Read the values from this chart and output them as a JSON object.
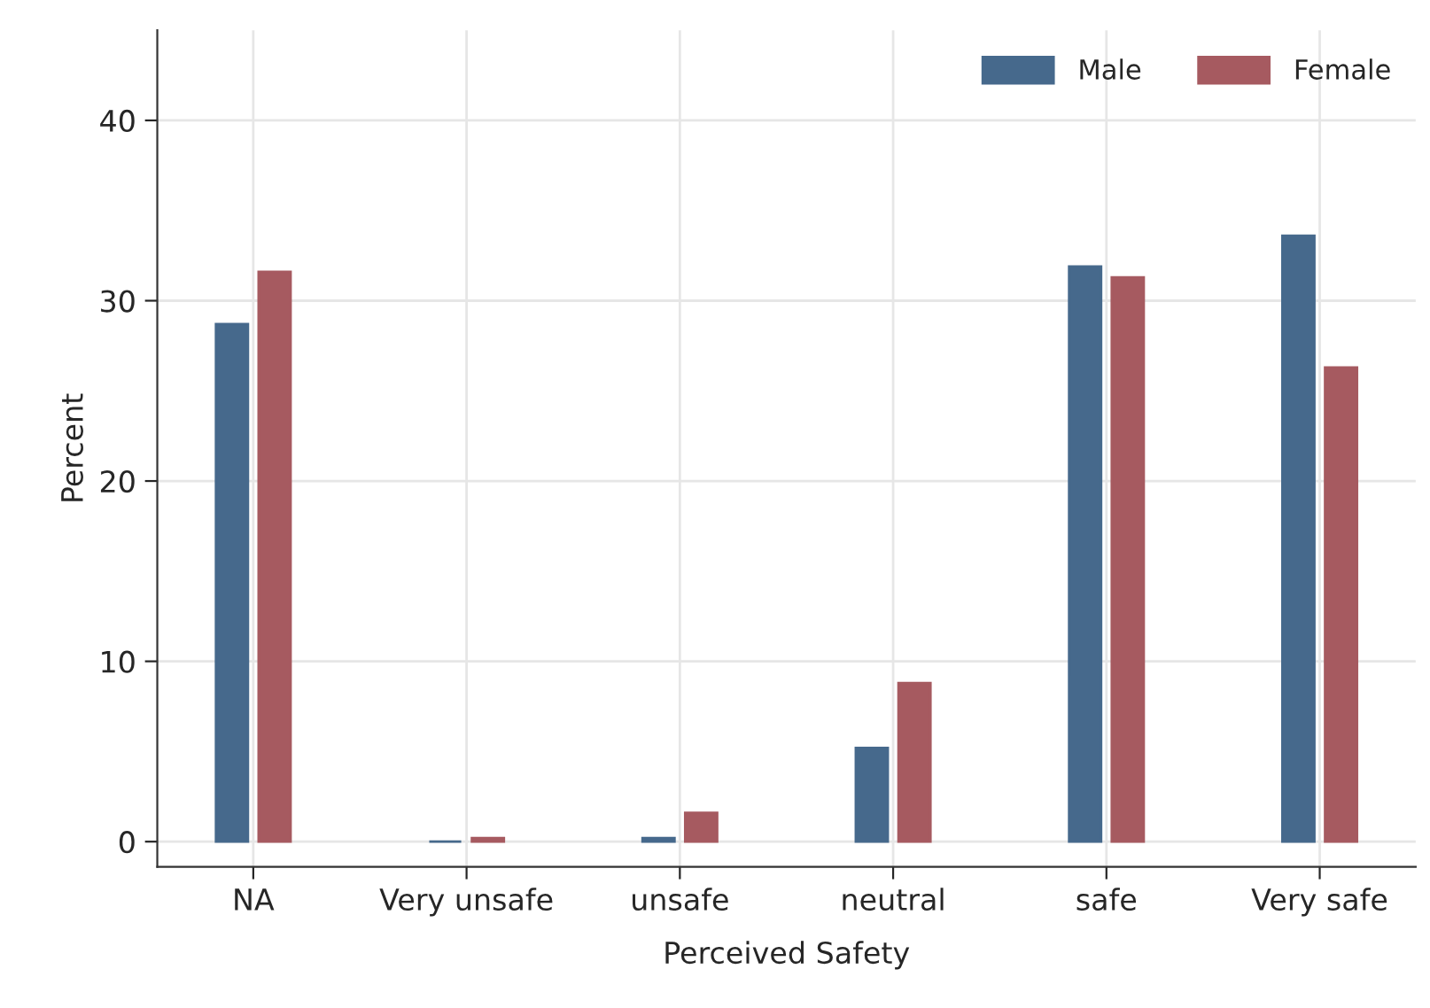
{
  "chart_data": {
    "type": "bar",
    "xlabel": "Perceived Safety",
    "ylabel": "Percent",
    "categories": [
      "NA",
      "Very unsafe",
      "unsafe",
      "neutral",
      "safe",
      "Very safe"
    ],
    "series": [
      {
        "name": "Male",
        "color": "#46698c",
        "values": [
          28.7,
          0,
          0.2,
          5.2,
          31.9,
          33.6
        ]
      },
      {
        "name": "Female",
        "color": "#a65a60",
        "values": [
          31.6,
          0.2,
          1.6,
          8.8,
          31.3,
          26.3
        ]
      }
    ],
    "ylim": [
      -1.4,
      45
    ],
    "yticks": [
      0,
      10,
      20,
      30,
      40
    ],
    "grid": true,
    "legend": "top right"
  }
}
